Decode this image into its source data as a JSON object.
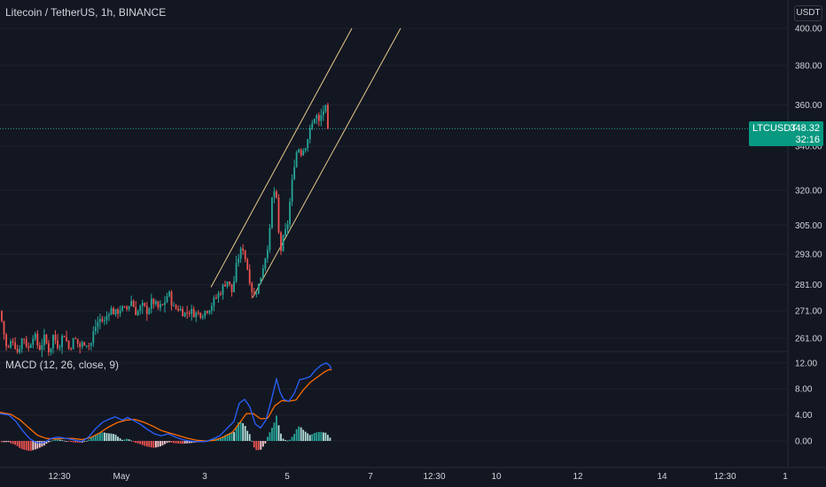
{
  "header": {
    "title": "Litecoin / TetherUS, 1h, BINANCE",
    "macd_title": "MACD (12, 26, close, 9)",
    "unit": "USDT"
  },
  "price_tag": {
    "symbol": "LTCUSDT",
    "price": "348.32",
    "countdown": "32:16",
    "color": "#089981"
  },
  "colors": {
    "up": "#26a69a",
    "down": "#ef5350",
    "macd": "#2962ff",
    "signal": "#ff6d00",
    "channel": "#e8c98a"
  },
  "chart_data": [
    {
      "type": "candlestick",
      "title": "Litecoin / TetherUS, 1h, BINANCE",
      "y_ticks": [
        261,
        271,
        281,
        293,
        305,
        320,
        340,
        360,
        380,
        400
      ],
      "y_tick_labels": [
        "261.00",
        "271.00",
        "281.00",
        "293.00",
        "305.00",
        "320.00",
        "340.00",
        "360.00",
        "380.00",
        "400.00"
      ],
      "y_scale": "log",
      "last_price": 348.32,
      "x_ticks": [
        "12:30",
        "May",
        "3",
        "5",
        "7",
        "12:30",
        "10",
        "12",
        "14",
        "12:30",
        "1"
      ],
      "keypoints": [
        [
          0,
          271
        ],
        [
          8,
          256
        ],
        [
          14,
          261
        ],
        [
          20,
          256
        ],
        [
          26,
          262
        ],
        [
          32,
          257
        ],
        [
          38,
          263
        ],
        [
          44,
          257
        ],
        [
          50,
          261
        ],
        [
          56,
          256
        ],
        [
          60,
          262
        ],
        [
          66,
          258
        ],
        [
          72,
          263
        ],
        [
          78,
          257
        ],
        [
          84,
          261
        ],
        [
          90,
          258
        ],
        [
          96,
          260
        ],
        [
          102,
          258
        ],
        [
          106,
          264
        ],
        [
          112,
          268
        ],
        [
          118,
          267
        ],
        [
          124,
          272
        ],
        [
          130,
          270
        ],
        [
          136,
          272
        ],
        [
          142,
          271
        ],
        [
          148,
          275
        ],
        [
          154,
          270
        ],
        [
          160,
          273
        ],
        [
          166,
          271
        ],
        [
          172,
          275
        ],
        [
          178,
          272
        ],
        [
          184,
          273
        ],
        [
          190,
          278
        ],
        [
          196,
          272
        ],
        [
          202,
          272
        ],
        [
          208,
          270
        ],
        [
          214,
          271
        ],
        [
          220,
          270
        ],
        [
          226,
          270
        ],
        [
          232,
          271
        ],
        [
          238,
          273
        ],
        [
          244,
          276
        ],
        [
          250,
          279
        ],
        [
          256,
          283
        ],
        [
          262,
          278
        ],
        [
          268,
          291
        ],
        [
          274,
          296
        ],
        [
          280,
          286
        ],
        [
          286,
          276
        ],
        [
          292,
          281
        ],
        [
          298,
          290
        ],
        [
          304,
          300
        ],
        [
          308,
          322
        ],
        [
          312,
          315
        ],
        [
          316,
          293
        ],
        [
          320,
          300
        ],
        [
          324,
          304
        ],
        [
          328,
          318
        ],
        [
          332,
          332
        ],
        [
          336,
          340
        ],
        [
          340,
          337
        ],
        [
          344,
          340
        ],
        [
          348,
          345
        ],
        [
          352,
          350
        ],
        [
          356,
          356
        ],
        [
          360,
          351
        ],
        [
          364,
          357
        ],
        [
          368,
          358
        ],
        [
          372,
          348.32
        ]
      ],
      "channel": [
        {
          "from": [
            238,
            280
          ],
          "to": [
            397,
            400
          ]
        },
        {
          "from": [
            285,
            276
          ],
          "to": [
            452,
            400
          ]
        }
      ]
    },
    {
      "type": "line",
      "title": "MACD (12, 26, close, 9)",
      "y_ticks": [
        0,
        4,
        8,
        12
      ],
      "y_tick_labels": [
        "0.00",
        "4.00",
        "8.00",
        "12.00"
      ],
      "series": [
        {
          "name": "MACD",
          "color": "#2962ff",
          "keypoints": [
            [
              0,
              4.2
            ],
            [
              10,
              4
            ],
            [
              18,
              3
            ],
            [
              26,
              1.5
            ],
            [
              34,
              0.3
            ],
            [
              42,
              -0.3
            ],
            [
              50,
              -0.2
            ],
            [
              58,
              0.4
            ],
            [
              66,
              0.6
            ],
            [
              74,
              0.4
            ],
            [
              82,
              0.2
            ],
            [
              92,
              -0.1
            ],
            [
              100,
              0.6
            ],
            [
              108,
              1.9
            ],
            [
              116,
              2.9
            ],
            [
              124,
              3.4
            ],
            [
              130,
              3.7
            ],
            [
              138,
              3.2
            ],
            [
              144,
              3.6
            ],
            [
              150,
              3.2
            ],
            [
              158,
              2.6
            ],
            [
              166,
              1.8
            ],
            [
              174,
              1.1
            ],
            [
              182,
              0.8
            ],
            [
              190,
              1.1
            ],
            [
              198,
              0.6
            ],
            [
              206,
              0.2
            ],
            [
              214,
              0
            ],
            [
              222,
              -0.1
            ],
            [
              232,
              -0.1
            ],
            [
              240,
              0.3
            ],
            [
              248,
              0.8
            ],
            [
              256,
              1.9
            ],
            [
              264,
              3
            ],
            [
              270,
              5.8
            ],
            [
              276,
              6.4
            ],
            [
              282,
              5.2
            ],
            [
              288,
              2.6
            ],
            [
              294,
              2
            ],
            [
              300,
              3.2
            ],
            [
              306,
              6.2
            ],
            [
              312,
              9.5
            ],
            [
              316,
              7.5
            ],
            [
              320,
              6.4
            ],
            [
              326,
              6.1
            ],
            [
              332,
              7.3
            ],
            [
              338,
              9.4
            ],
            [
              344,
              9.6
            ],
            [
              350,
              9.9
            ],
            [
              356,
              10.9
            ],
            [
              362,
              11.6
            ],
            [
              368,
              12
            ],
            [
              372,
              11.6
            ],
            [
              375,
              10.8
            ]
          ]
        },
        {
          "name": "Signal",
          "color": "#ff6d00",
          "keypoints": [
            [
              0,
              4.4
            ],
            [
              12,
              4.1
            ],
            [
              22,
              3.3
            ],
            [
              32,
              2.1
            ],
            [
              42,
              0.9
            ],
            [
              52,
              0.4
            ],
            [
              62,
              0.3
            ],
            [
              72,
              0.4
            ],
            [
              82,
              0.4
            ],
            [
              92,
              0.2
            ],
            [
              102,
              0.5
            ],
            [
              112,
              1.2
            ],
            [
              122,
              2.1
            ],
            [
              132,
              2.8
            ],
            [
              142,
              3.2
            ],
            [
              152,
              3.3
            ],
            [
              162,
              2.9
            ],
            [
              172,
              2.3
            ],
            [
              182,
              1.6
            ],
            [
              192,
              1.2
            ],
            [
              202,
              0.8
            ],
            [
              212,
              0.4
            ],
            [
              222,
              0.1
            ],
            [
              232,
              0
            ],
            [
              242,
              0.1
            ],
            [
              252,
              0.6
            ],
            [
              262,
              1.3
            ],
            [
              270,
              2.7
            ],
            [
              278,
              4.2
            ],
            [
              286,
              4.2
            ],
            [
              294,
              3.4
            ],
            [
              302,
              3.5
            ],
            [
              310,
              5.4
            ],
            [
              318,
              6.2
            ],
            [
              326,
              6.1
            ],
            [
              334,
              6.3
            ],
            [
              342,
              7.8
            ],
            [
              350,
              9
            ],
            [
              358,
              9.8
            ],
            [
              366,
              10.6
            ],
            [
              372,
              11
            ],
            [
              375,
              10.8
            ]
          ]
        }
      ]
    }
  ]
}
